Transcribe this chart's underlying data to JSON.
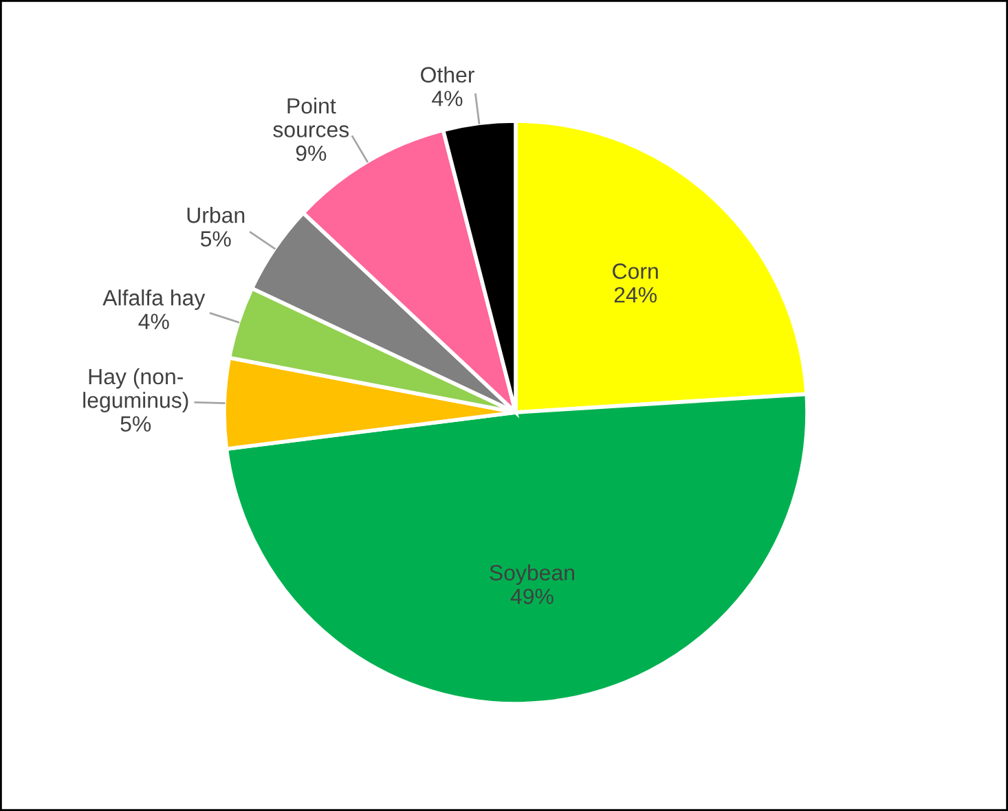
{
  "chart_data": {
    "type": "pie",
    "categories": [
      "Corn",
      "Soybean",
      "Hay (non-\nleguminus)",
      "Alfalfa hay",
      "Urban",
      "Point\nsources",
      "Other"
    ],
    "values": [
      24,
      49,
      5,
      4,
      5,
      9,
      4
    ],
    "colors": [
      "#ffff00",
      "#00b050",
      "#ffc000",
      "#92d050",
      "#808080",
      "#ff6699",
      "#000000"
    ],
    "value_labels": [
      "24%",
      "49%",
      "5%",
      "4%",
      "5%",
      "9%",
      "4%"
    ],
    "legend": false
  }
}
